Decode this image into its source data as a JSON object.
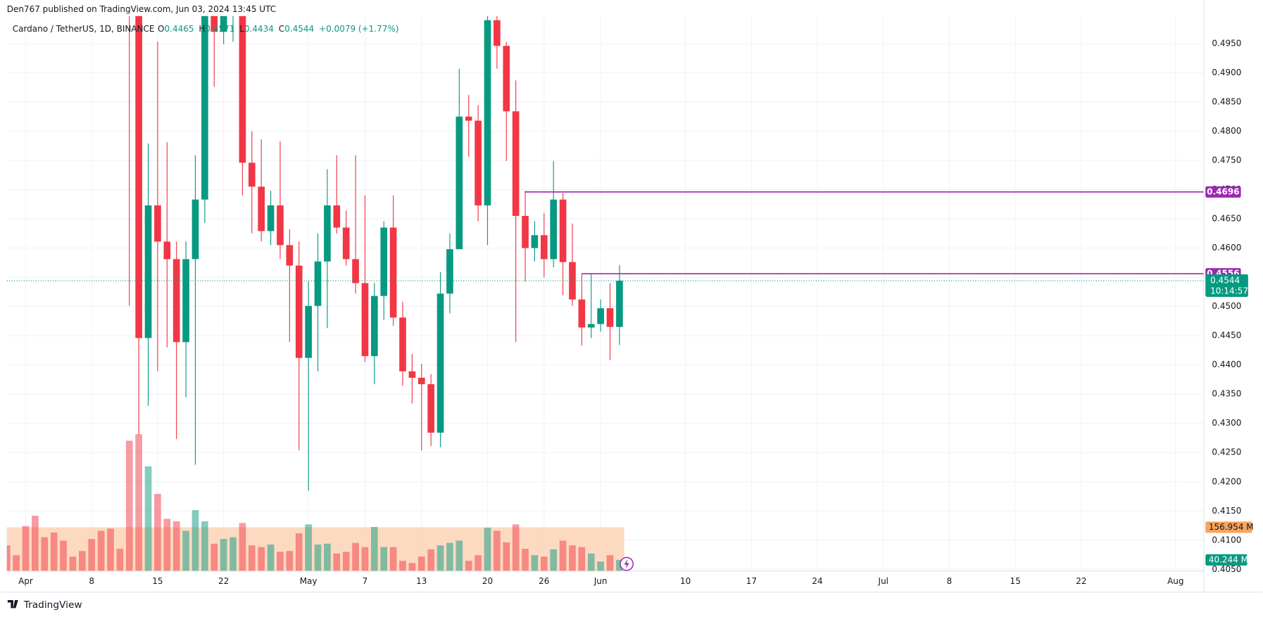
{
  "published": "Den767 published on TradingView.com, Jun 03, 2024 13:45 UTC",
  "footer": "TradingView",
  "chart_data": {
    "type": "candlestick",
    "symbol": "Cardano / TetherUS, 1D, BINANCE",
    "ohlc_labels": [
      "O",
      "H",
      "L",
      "C"
    ],
    "change": "+0.0079 (+1.77%)",
    "up_color": "#089981",
    "down_color": "#f23645",
    "x": [
      "2024-03-30",
      "2024-03-31",
      "2024-04-01",
      "2024-04-02",
      "2024-04-03",
      "2024-04-04",
      "2024-04-05",
      "2024-04-06",
      "2024-04-07",
      "2024-04-08",
      "2024-04-09",
      "2024-04-10",
      "2024-04-11",
      "2024-04-12",
      "2024-04-13",
      "2024-04-14",
      "2024-04-15",
      "2024-04-16",
      "2024-04-17",
      "2024-04-18",
      "2024-04-19",
      "2024-04-20",
      "2024-04-21",
      "2024-04-22",
      "2024-04-23",
      "2024-04-24",
      "2024-04-25",
      "2024-04-26",
      "2024-04-27",
      "2024-04-28",
      "2024-04-29",
      "2024-04-30",
      "2024-05-01",
      "2024-05-02",
      "2024-05-03",
      "2024-05-04",
      "2024-05-05",
      "2024-05-06",
      "2024-05-07",
      "2024-05-08",
      "2024-05-09",
      "2024-05-10",
      "2024-05-11",
      "2024-05-12",
      "2024-05-13",
      "2024-05-14",
      "2024-05-15",
      "2024-05-16",
      "2024-05-17",
      "2024-05-18",
      "2024-05-19",
      "2024-05-20",
      "2024-05-21",
      "2024-05-22",
      "2024-05-23",
      "2024-05-24",
      "2024-05-25",
      "2024-05-26",
      "2024-05-27",
      "2024-05-28",
      "2024-05-29",
      "2024-05-30",
      "2024-05-31",
      "2024-06-01",
      "2024-06-02",
      "2024-06-03"
    ],
    "open": [
      null,
      null,
      null,
      null,
      null,
      null,
      null,
      null,
      null,
      null,
      null,
      null,
      null,
      0.579,
      0.5,
      0.4446,
      0.4673,
      0.4611,
      0.4581,
      0.4439,
      0.4581,
      0.4683,
      0.5,
      0.497,
      0.501,
      0.503,
      0.4746,
      0.4705,
      0.4629,
      0.4673,
      0.4605,
      0.457,
      0.4412,
      0.4501,
      0.4577,
      0.4673,
      0.4635,
      0.4581,
      0.454,
      0.4415,
      0.4518,
      0.4635,
      0.4481,
      0.4389,
      0.4378,
      0.4367,
      0.4284,
      0.4522,
      0.4598,
      0.4825,
      0.4818,
      0.4673,
      0.499,
      0.4946,
      0.4834,
      0.4655,
      0.46,
      0.4622,
      0.4581,
      0.4683,
      0.4576,
      0.4512,
      0.4464,
      0.447,
      0.4497,
      0.4465
    ],
    "high": [
      null,
      null,
      null,
      null,
      null,
      null,
      null,
      null,
      null,
      null,
      null,
      null,
      null,
      0.584,
      0.503,
      0.4779,
      0.4953,
      0.4781,
      0.4611,
      0.4611,
      0.4759,
      0.505,
      0.506,
      0.504,
      0.506,
      0.506,
      0.48,
      0.4786,
      0.4698,
      0.4783,
      0.4632,
      0.4611,
      0.4543,
      0.4625,
      0.4735,
      0.4759,
      0.4664,
      0.4759,
      0.469,
      0.454,
      0.4646,
      0.469,
      0.4508,
      0.4419,
      0.4402,
      0.4384,
      0.4559,
      0.4625,
      0.4907,
      0.4862,
      0.4845,
      0.503,
      0.505,
      0.4953,
      0.4887,
      0.4698,
      0.4646,
      0.466,
      0.4749,
      0.4694,
      0.4642,
      0.4556,
      0.4556,
      0.4512,
      0.454,
      0.4571
    ],
    "low": [
      null,
      null,
      null,
      null,
      null,
      null,
      null,
      null,
      null,
      null,
      null,
      null,
      null,
      0.4501,
      0.428,
      0.433,
      0.4389,
      0.443,
      0.4273,
      0.4345,
      0.4229,
      0.4643,
      0.4876,
      0.4949,
      0.4953,
      0.469,
      0.4625,
      0.4611,
      0.4605,
      0.4581,
      0.4439,
      0.4254,
      0.4185,
      0.4389,
      0.4463,
      0.4625,
      0.457,
      0.4522,
      0.4405,
      0.4367,
      0.4477,
      0.4467,
      0.4364,
      0.4334,
      0.4254,
      0.4261,
      0.4259,
      0.4488,
      0.4598,
      0.4756,
      0.4646,
      0.4605,
      0.4907,
      0.4749,
      0.4439,
      0.4543,
      0.4577,
      0.455,
      0.4567,
      0.4519,
      0.4501,
      0.4433,
      0.4446,
      0.4457,
      0.4408,
      0.4434
    ],
    "close": [
      null,
      null,
      null,
      null,
      null,
      null,
      null,
      null,
      null,
      null,
      null,
      null,
      null,
      0.5,
      0.4446,
      0.4673,
      0.4611,
      0.4581,
      0.4439,
      0.4581,
      0.4683,
      0.5,
      0.497,
      0.501,
      0.503,
      0.4746,
      0.4705,
      0.4629,
      0.4673,
      0.4605,
      0.457,
      0.4412,
      0.4501,
      0.4577,
      0.4673,
      0.4635,
      0.4581,
      0.454,
      0.4415,
      0.4518,
      0.4635,
      0.4481,
      0.4389,
      0.4378,
      0.4367,
      0.4284,
      0.4522,
      0.4598,
      0.4825,
      0.4818,
      0.4673,
      0.499,
      0.4946,
      0.4834,
      0.4655,
      0.46,
      0.4622,
      0.4581,
      0.4683,
      0.4576,
      0.4512,
      0.4464,
      0.447,
      0.4497,
      0.4465,
      0.4544
    ],
    "volume": [
      92,
      57,
      161,
      198,
      121,
      138,
      109,
      52,
      72,
      115,
      144,
      152,
      80,
      466,
      489,
      374,
      276,
      187,
      178,
      144,
      218,
      178,
      98,
      115,
      121,
      172,
      92,
      86,
      95,
      69,
      72,
      135,
      167,
      95,
      98,
      63,
      69,
      101,
      86,
      158,
      86,
      86,
      37,
      29,
      52,
      78,
      92,
      101,
      109,
      37,
      57,
      155,
      144,
      103,
      167,
      80,
      57,
      52,
      78,
      109,
      92,
      86,
      63,
      34,
      57,
      40.244
    ],
    "volume_last_label": "40.244 M",
    "volume_ma": 156.954,
    "volume_ma_label": "156.954 M",
    "volume_ma_color": "#fcd4b6",
    "volume_ylim": [
      0,
      500
    ],
    "countdown": "10:14:57",
    "levels": [
      {
        "start": "2024-05-24",
        "value": 0.4696
      },
      {
        "start": "2024-05-30",
        "value": 0.4556
      }
    ],
    "level_color": "#9c27b0",
    "xlim": [
      "2024-03-30",
      "2024-08-04"
    ],
    "xticks": [
      {
        "value": "2024-04-01",
        "label": "Apr"
      },
      {
        "value": "2024-04-08",
        "label": "8"
      },
      {
        "value": "2024-04-15",
        "label": "15"
      },
      {
        "value": "2024-04-22",
        "label": "22"
      },
      {
        "value": "2024-05-01",
        "label": "May"
      },
      {
        "value": "2024-05-07",
        "label": "7"
      },
      {
        "value": "2024-05-13",
        "label": "13"
      },
      {
        "value": "2024-05-20",
        "label": "20"
      },
      {
        "value": "2024-05-26",
        "label": "26"
      },
      {
        "value": "2024-06-01",
        "label": "Jun"
      },
      {
        "value": "2024-06-10",
        "label": "10"
      },
      {
        "value": "2024-06-17",
        "label": "17"
      },
      {
        "value": "2024-06-24",
        "label": "24"
      },
      {
        "value": "2024-07-01",
        "label": "Jul"
      },
      {
        "value": "2024-07-08",
        "label": "8"
      },
      {
        "value": "2024-07-15",
        "label": "15"
      },
      {
        "value": "2024-07-22",
        "label": "22"
      },
      {
        "value": "2024-08-01",
        "label": "Aug"
      }
    ],
    "ylim": [
      0.4047,
      0.4997
    ],
    "yticks": [
      {
        "value": 0.405,
        "label": "0.4050"
      },
      {
        "value": 0.41,
        "label": "0.4100"
      },
      {
        "value": 0.415,
        "label": "0.4150"
      },
      {
        "value": 0.42,
        "label": "0.4200"
      },
      {
        "value": 0.425,
        "label": "0.4250"
      },
      {
        "value": 0.43,
        "label": "0.4300"
      },
      {
        "value": 0.435,
        "label": "0.4350"
      },
      {
        "value": 0.44,
        "label": "0.4400"
      },
      {
        "value": 0.445,
        "label": "0.4450"
      },
      {
        "value": 0.45,
        "label": "0.4500"
      },
      {
        "value": 0.455,
        "label": "0.4550"
      },
      {
        "value": 0.46,
        "label": "0.4600"
      },
      {
        "value": 0.465,
        "label": "0.4650"
      },
      {
        "value": 0.47,
        "label": "0.4700"
      },
      {
        "value": 0.475,
        "label": "0.4750"
      },
      {
        "value": 0.48,
        "label": "0.4800"
      },
      {
        "value": 0.485,
        "label": "0.4850"
      },
      {
        "value": 0.49,
        "label": "0.4900"
      },
      {
        "value": 0.495,
        "label": "0.4950"
      }
    ],
    "grid": true
  }
}
